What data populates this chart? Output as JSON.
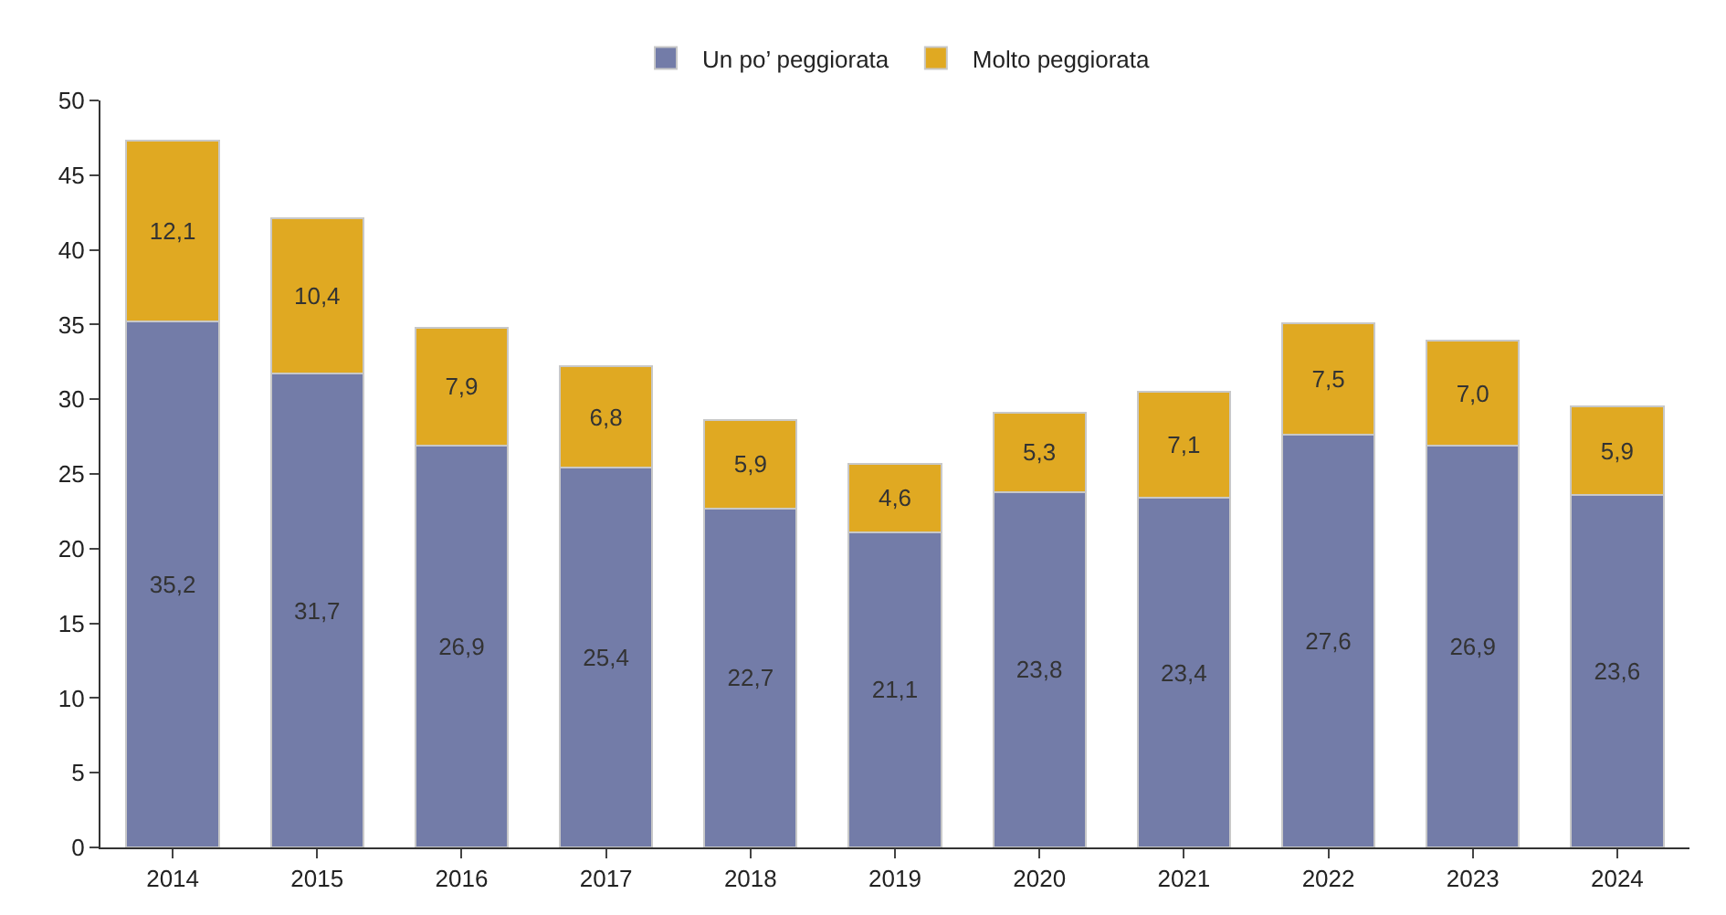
{
  "chart_data": {
    "type": "bar",
    "stacked": true,
    "categories": [
      "2014",
      "2015",
      "2016",
      "2017",
      "2018",
      "2019",
      "2020",
      "2021",
      "2022",
      "2023",
      "2024"
    ],
    "series": [
      {
        "name": "Un po’ peggiorata",
        "color": "#737ca8",
        "values": [
          35.2,
          31.7,
          26.9,
          25.4,
          22.7,
          21.1,
          23.8,
          23.4,
          27.6,
          26.9,
          23.6
        ],
        "value_labels": [
          "35,2",
          "31,7",
          "26,9",
          "25,4",
          "22,7",
          "21,1",
          "23,8",
          "23,4",
          "27,6",
          "26,9",
          "23,6"
        ]
      },
      {
        "name": "Molto peggiorata",
        "color": "#e0a922",
        "values": [
          12.1,
          10.4,
          7.9,
          6.8,
          5.9,
          4.6,
          5.3,
          7.1,
          7.5,
          7.0,
          5.9
        ],
        "value_labels": [
          "12,1",
          "10,4",
          "7,9",
          "6,8",
          "5,9",
          "4,6",
          "5,3",
          "7,1",
          "7,5",
          "7,0",
          "5,9"
        ]
      }
    ],
    "ylim": [
      0,
      50
    ],
    "yticks": [
      0,
      5,
      10,
      15,
      20,
      25,
      30,
      35,
      40,
      45,
      50
    ],
    "legend": "top"
  }
}
